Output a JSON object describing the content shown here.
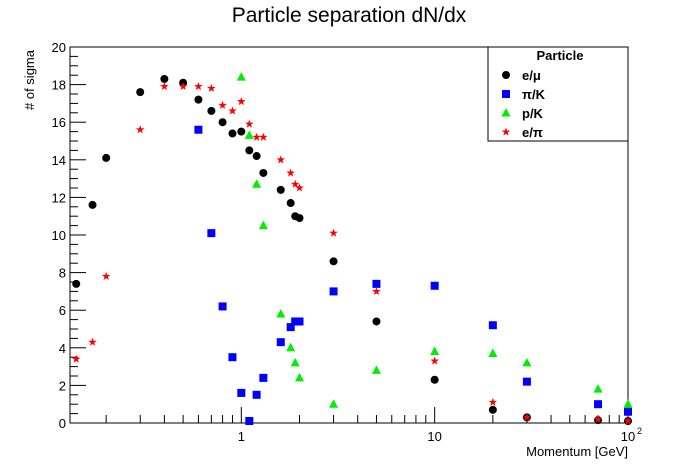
{
  "chart_data": {
    "type": "scatter",
    "title": "Particle separation dN/dx",
    "xlabel": "Momentum [GeV]",
    "ylabel": "# of sigma",
    "xscale": "log",
    "xlim": [
      0.13,
      100
    ],
    "ylim": [
      0,
      20
    ],
    "x_tick_labels": [
      {
        "value": 1,
        "label": "1"
      },
      {
        "value": 10,
        "label": "10"
      },
      {
        "value": 100,
        "label": "10",
        "exponent": "2"
      }
    ],
    "y_ticks": [
      0,
      2,
      4,
      6,
      8,
      10,
      12,
      14,
      16,
      18,
      20
    ],
    "legend": {
      "title": "Particle",
      "position": "top-right"
    },
    "series": [
      {
        "name": "e/μ",
        "marker": "circle",
        "color": "#000000",
        "points": [
          [
            0.14,
            7.4
          ],
          [
            0.17,
            11.6
          ],
          [
            0.2,
            14.1
          ],
          [
            0.3,
            17.6
          ],
          [
            0.4,
            18.3
          ],
          [
            0.5,
            18.1
          ],
          [
            0.6,
            17.2
          ],
          [
            0.7,
            16.6
          ],
          [
            0.8,
            16.0
          ],
          [
            0.9,
            15.4
          ],
          [
            1.0,
            15.5
          ],
          [
            1.1,
            14.5
          ],
          [
            1.2,
            14.2
          ],
          [
            1.3,
            13.3
          ],
          [
            1.6,
            12.4
          ],
          [
            1.8,
            11.7
          ],
          [
            1.9,
            11.0
          ],
          [
            2.0,
            10.9
          ],
          [
            3.0,
            8.6
          ],
          [
            5.0,
            5.4
          ],
          [
            10,
            2.3
          ],
          [
            20,
            0.7
          ],
          [
            30,
            0.3
          ],
          [
            70,
            0.15
          ],
          [
            100,
            0.1
          ]
        ]
      },
      {
        "name": "π/K",
        "marker": "square",
        "color": "#0000ff",
        "points": [
          [
            0.6,
            15.6
          ],
          [
            0.7,
            10.1
          ],
          [
            0.8,
            6.2
          ],
          [
            0.9,
            3.5
          ],
          [
            1.0,
            1.6
          ],
          [
            1.1,
            0.1
          ],
          [
            1.2,
            1.5
          ],
          [
            1.3,
            2.4
          ],
          [
            1.6,
            4.3
          ],
          [
            1.8,
            5.1
          ],
          [
            1.9,
            5.4
          ],
          [
            2.0,
            5.4
          ],
          [
            3.0,
            7.0
          ],
          [
            5.0,
            7.4
          ],
          [
            10,
            7.3
          ],
          [
            20,
            5.2
          ],
          [
            30,
            2.2
          ],
          [
            70,
            1.0
          ],
          [
            100,
            0.6
          ]
        ]
      },
      {
        "name": "p/K",
        "marker": "triangle",
        "color": "#00ee00",
        "points": [
          [
            1.0,
            18.4
          ],
          [
            1.1,
            15.3
          ],
          [
            1.2,
            12.7
          ],
          [
            1.3,
            10.5
          ],
          [
            1.6,
            5.8
          ],
          [
            1.8,
            4.0
          ],
          [
            1.9,
            3.2
          ],
          [
            2.0,
            2.4
          ],
          [
            3.0,
            1.0
          ],
          [
            5.0,
            2.8
          ],
          [
            10,
            3.8
          ],
          [
            20,
            3.7
          ],
          [
            30,
            3.2
          ],
          [
            70,
            1.8
          ],
          [
            100,
            1.0
          ]
        ]
      },
      {
        "name": "e/π",
        "marker": "star",
        "color": "#ff0000",
        "points": [
          [
            0.14,
            3.4
          ],
          [
            0.17,
            4.3
          ],
          [
            0.2,
            7.8
          ],
          [
            0.3,
            15.6
          ],
          [
            0.4,
            17.9
          ],
          [
            0.5,
            17.9
          ],
          [
            0.6,
            17.9
          ],
          [
            0.7,
            17.8
          ],
          [
            0.8,
            16.9
          ],
          [
            0.9,
            16.6
          ],
          [
            1.0,
            17.1
          ],
          [
            1.1,
            15.9
          ],
          [
            1.2,
            15.2
          ],
          [
            1.3,
            15.2
          ],
          [
            1.6,
            14.0
          ],
          [
            1.8,
            13.3
          ],
          [
            1.9,
            12.7
          ],
          [
            2.0,
            12.5
          ],
          [
            3.0,
            10.1
          ],
          [
            5.0,
            7.0
          ],
          [
            10,
            3.3
          ],
          [
            20,
            1.1
          ],
          [
            30,
            0.3
          ],
          [
            70,
            0.2
          ],
          [
            100,
            0.1
          ]
        ]
      }
    ]
  }
}
